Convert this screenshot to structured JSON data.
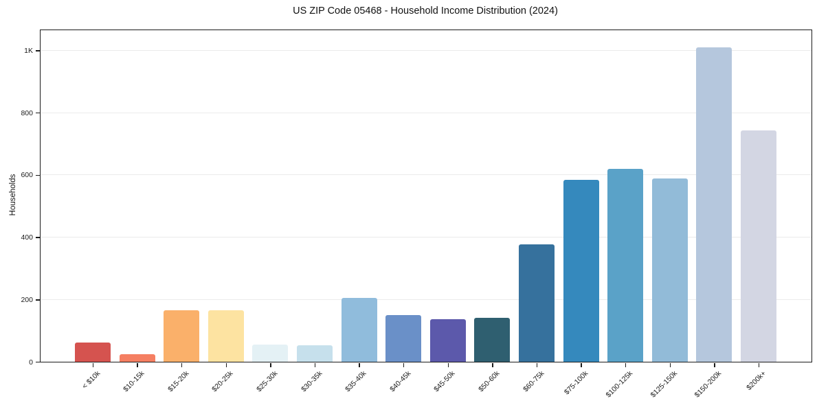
{
  "figure": {
    "background_color": "#ffffff"
  },
  "chart_data": {
    "type": "bar",
    "title": "US ZIP Code 05468 - Household Income Distribution (2024)",
    "xlabel": "",
    "ylabel": "Households",
    "categories": [
      "< $10k",
      "$10-15k",
      "$15-20k",
      "$20-25k",
      "$25-30k",
      "$30-35k",
      "$35-40k",
      "$40-45k",
      "$45-50k",
      "$50-60k",
      "$60-75k",
      "$75-100k",
      "$100-125k",
      "$125-150k",
      "$150-200k",
      "$200k+"
    ],
    "values": [
      62,
      24,
      166,
      166,
      55,
      52,
      204,
      150,
      136,
      141,
      376,
      585,
      620,
      588,
      1011,
      744
    ],
    "bar_colors": [
      "#d5534f",
      "#f57f62",
      "#fab06a",
      "#fde3a1",
      "#e4f1f5",
      "#c6e0ec",
      "#90bcdc",
      "#6a90c8",
      "#5c59ab",
      "#2f5f70",
      "#36719d",
      "#3589bd",
      "#5aa2c8",
      "#92bbd8",
      "#b5c7dd",
      "#d3d6e3"
    ],
    "ylim": [
      0,
      1065
    ],
    "yticks": [
      {
        "value": 0,
        "label": "0"
      },
      {
        "value": 200,
        "label": "200"
      },
      {
        "value": 400,
        "label": "400"
      },
      {
        "value": 600,
        "label": "600"
      },
      {
        "value": 800,
        "label": "800"
      },
      {
        "value": 1000,
        "label": "1K"
      }
    ],
    "grid": "horizontal-only",
    "legend": "none",
    "colors": {
      "spine": "#1a1a1a",
      "gridline": "#ebebeb",
      "text": "#1a1a1a",
      "background": "#ffffff"
    }
  }
}
